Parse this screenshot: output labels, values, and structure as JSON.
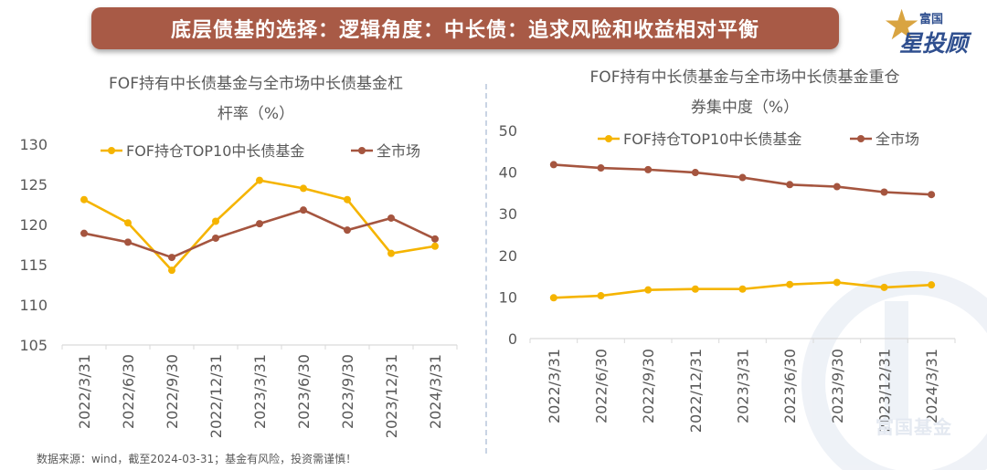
{
  "banner": {
    "title": "底层债基的选择：逻辑角度：中长债：追求风险和收益相对平衡"
  },
  "logo": {
    "line1": "富国",
    "line2": "星投顾"
  },
  "watermark": "富国基金",
  "footnote": "数据来源：wind，截至2024-03-31；基金有风险，投资需谨慎！",
  "colors": {
    "fof": "#f5b400",
    "market": "#a5553f",
    "banner": "#a85a46",
    "brand": "#2f4f8f"
  },
  "chart_data": [
    {
      "type": "line",
      "title": "FOF持有中长债基金与全市场中长债基金杠",
      "title_line2": "杆率（%）",
      "categories": [
        "2022/3/31",
        "2022/6/30",
        "2022/9/30",
        "2022/12/31",
        "2023/3/31",
        "2023/6/30",
        "2023/9/30",
        "2023/12/31",
        "2024/3/31"
      ],
      "series": [
        {
          "name": "FOF持仓TOP10中长债基金",
          "values": [
            123.1,
            120.2,
            114.3,
            120.4,
            125.5,
            124.5,
            123.1,
            116.4,
            117.3
          ]
        },
        {
          "name": "全市场",
          "values": [
            118.9,
            117.8,
            115.9,
            118.3,
            120.1,
            121.8,
            119.3,
            120.8,
            118.2
          ]
        }
      ],
      "ylim": [
        105,
        130
      ],
      "yticks": [
        105,
        110,
        115,
        120,
        125,
        130
      ],
      "legend": "top"
    },
    {
      "type": "line",
      "title": "FOF持有中长债基金与全市场中长债基金重仓",
      "title_line2": "券集中度（%）",
      "categories": [
        "2022/3/31",
        "2022/6/30",
        "2022/9/30",
        "2022/12/31",
        "2023/3/31",
        "2023/6/30",
        "2023/9/30",
        "2023/12/31",
        "2024/3/31"
      ],
      "series": [
        {
          "name": "FOF持仓TOP10中长债基金",
          "values": [
            9.8,
            10.3,
            11.7,
            11.9,
            11.9,
            13.0,
            13.5,
            12.3,
            12.9
          ]
        },
        {
          "name": "全市场",
          "values": [
            41.8,
            41.0,
            40.6,
            39.9,
            38.7,
            37.0,
            36.5,
            35.2,
            34.6
          ]
        }
      ],
      "ylim": [
        0,
        50
      ],
      "yticks": [
        0,
        10,
        20,
        30,
        40,
        50
      ],
      "legend": "top"
    }
  ]
}
